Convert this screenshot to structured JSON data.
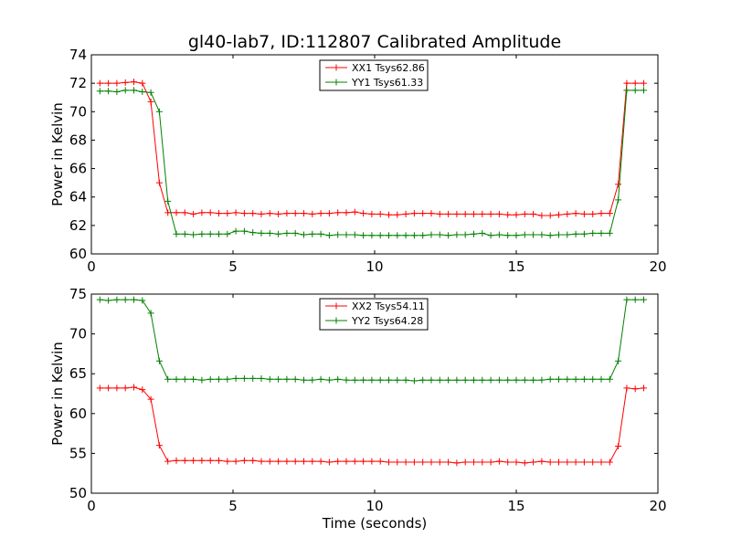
{
  "chart_data": {
    "title": "gl40-lab7, ID:112807 Calibrated Amplitude",
    "xlabel": "Time (seconds)",
    "colors": {
      "XX": "#ff0000",
      "YY": "#008000"
    },
    "panels": [
      {
        "type": "line",
        "ylabel": "Power in Kelvin",
        "xlim": [
          0,
          20
        ],
        "ylim": [
          60,
          74
        ],
        "xticks": [
          0,
          5,
          10,
          15,
          20
        ],
        "yticks": [
          60,
          62,
          64,
          66,
          68,
          70,
          72,
          74
        ],
        "legend_position": "top-center",
        "x": [
          0.3,
          0.6,
          0.9,
          1.2,
          1.5,
          1.8,
          2.1,
          2.4,
          2.7,
          3.0,
          3.3,
          3.6,
          3.9,
          4.2,
          4.5,
          4.8,
          5.1,
          5.4,
          5.7,
          6.0,
          6.3,
          6.6,
          6.9,
          7.2,
          7.5,
          7.8,
          8.1,
          8.4,
          8.7,
          9.0,
          9.3,
          9.6,
          9.9,
          10.2,
          10.5,
          10.8,
          11.1,
          11.4,
          11.7,
          12.0,
          12.3,
          12.6,
          12.9,
          13.2,
          13.5,
          13.8,
          14.1,
          14.4,
          14.7,
          15.0,
          15.3,
          15.6,
          15.9,
          16.2,
          16.5,
          16.8,
          17.1,
          17.4,
          17.7,
          18.0,
          18.3,
          18.6,
          18.9,
          19.2,
          19.5
        ],
        "series": [
          {
            "name": "XX1",
            "label": "XX1 Tsys62.86",
            "color_key": "XX",
            "values": [
              72.0,
              72.0,
              72.0,
              72.05,
              72.1,
              72.0,
              70.7,
              65.0,
              62.9,
              62.9,
              62.9,
              62.8,
              62.9,
              62.9,
              62.85,
              62.85,
              62.9,
              62.85,
              62.85,
              62.8,
              62.85,
              62.8,
              62.85,
              62.85,
              62.85,
              62.8,
              62.85,
              62.85,
              62.9,
              62.9,
              62.95,
              62.85,
              62.8,
              62.8,
              62.75,
              62.75,
              62.8,
              62.85,
              62.85,
              62.85,
              62.8,
              62.8,
              62.8,
              62.8,
              62.8,
              62.8,
              62.8,
              62.8,
              62.75,
              62.75,
              62.8,
              62.8,
              62.7,
              62.7,
              62.75,
              62.8,
              62.85,
              62.8,
              62.8,
              62.85,
              62.85,
              64.9,
              72.0,
              72.0,
              72.0
            ]
          },
          {
            "name": "YY1",
            "label": "YY1 Tsys61.33",
            "color_key": "YY",
            "values": [
              71.45,
              71.45,
              71.4,
              71.5,
              71.5,
              71.4,
              71.35,
              70.0,
              63.7,
              61.4,
              61.4,
              61.35,
              61.4,
              61.4,
              61.4,
              61.4,
              61.6,
              61.6,
              61.5,
              61.45,
              61.45,
              61.4,
              61.45,
              61.45,
              61.35,
              61.4,
              61.4,
              61.3,
              61.35,
              61.35,
              61.35,
              61.3,
              61.3,
              61.3,
              61.3,
              61.3,
              61.3,
              61.3,
              61.3,
              61.35,
              61.35,
              61.3,
              61.35,
              61.35,
              61.4,
              61.45,
              61.3,
              61.35,
              61.3,
              61.3,
              61.35,
              61.35,
              61.35,
              61.3,
              61.35,
              61.35,
              61.4,
              61.4,
              61.45,
              61.45,
              61.45,
              63.8,
              71.5,
              71.5,
              71.5
            ]
          }
        ]
      },
      {
        "type": "line",
        "ylabel": "Power in Kelvin",
        "xlim": [
          0,
          20
        ],
        "ylim": [
          50,
          75
        ],
        "xticks": [
          0,
          5,
          10,
          15,
          20
        ],
        "yticks": [
          50,
          55,
          60,
          65,
          70,
          75
        ],
        "legend_position": "top-center",
        "x": [
          0.3,
          0.6,
          0.9,
          1.2,
          1.5,
          1.8,
          2.1,
          2.4,
          2.7,
          3.0,
          3.3,
          3.6,
          3.9,
          4.2,
          4.5,
          4.8,
          5.1,
          5.4,
          5.7,
          6.0,
          6.3,
          6.6,
          6.9,
          7.2,
          7.5,
          7.8,
          8.1,
          8.4,
          8.7,
          9.0,
          9.3,
          9.6,
          9.9,
          10.2,
          10.5,
          10.8,
          11.1,
          11.4,
          11.7,
          12.0,
          12.3,
          12.6,
          12.9,
          13.2,
          13.5,
          13.8,
          14.1,
          14.4,
          14.7,
          15.0,
          15.3,
          15.6,
          15.9,
          16.2,
          16.5,
          16.8,
          17.1,
          17.4,
          17.7,
          18.0,
          18.3,
          18.6,
          18.9,
          19.2,
          19.5
        ],
        "series": [
          {
            "name": "XX2",
            "label": "XX2 Tsys54.11",
            "color_key": "XX",
            "values": [
              63.2,
              63.2,
              63.2,
              63.2,
              63.3,
              63.0,
              61.8,
              56.0,
              54.0,
              54.1,
              54.1,
              54.1,
              54.1,
              54.1,
              54.1,
              54.0,
              54.0,
              54.1,
              54.1,
              54.0,
              54.0,
              54.0,
              54.0,
              54.0,
              54.0,
              54.0,
              54.0,
              53.9,
              54.0,
              54.0,
              54.0,
              54.0,
              54.0,
              54.0,
              53.9,
              53.9,
              53.9,
              53.9,
              53.9,
              53.9,
              53.9,
              53.9,
              53.8,
              53.9,
              53.9,
              53.9,
              53.9,
              54.0,
              53.9,
              53.9,
              53.8,
              53.9,
              54.0,
              53.9,
              53.9,
              53.9,
              53.9,
              53.9,
              53.9,
              53.9,
              53.9,
              55.9,
              63.2,
              63.1,
              63.2
            ]
          },
          {
            "name": "YY2",
            "label": "YY2 Tsys64.28",
            "color_key": "YY",
            "values": [
              74.3,
              74.2,
              74.3,
              74.3,
              74.3,
              74.2,
              72.6,
              66.6,
              64.3,
              64.3,
              64.3,
              64.3,
              64.2,
              64.3,
              64.3,
              64.3,
              64.4,
              64.4,
              64.4,
              64.4,
              64.3,
              64.3,
              64.3,
              64.3,
              64.2,
              64.2,
              64.3,
              64.2,
              64.3,
              64.2,
              64.2,
              64.2,
              64.2,
              64.2,
              64.2,
              64.2,
              64.2,
              64.1,
              64.2,
              64.2,
              64.2,
              64.2,
              64.2,
              64.2,
              64.2,
              64.2,
              64.2,
              64.2,
              64.2,
              64.2,
              64.2,
              64.2,
              64.2,
              64.3,
              64.3,
              64.3,
              64.3,
              64.3,
              64.3,
              64.3,
              64.3,
              66.6,
              74.3,
              74.3,
              74.3
            ]
          }
        ]
      }
    ]
  }
}
